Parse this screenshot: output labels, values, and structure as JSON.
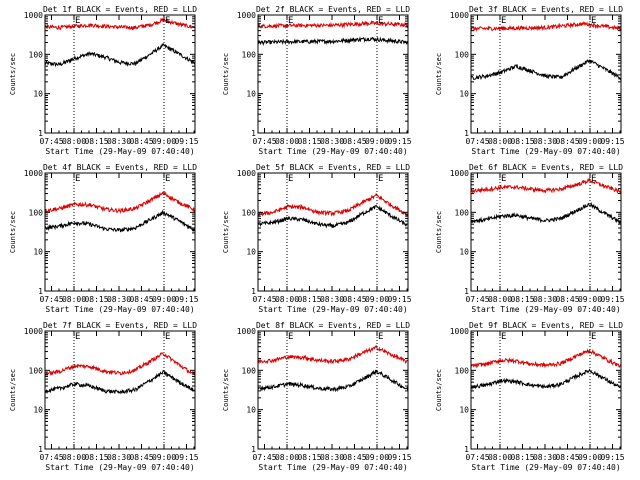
{
  "figure": {
    "background": "#ffffff",
    "axis_color": "#000000"
  },
  "chart_data": [
    {
      "type": "line",
      "title": "Det 1f BLACK = Events, RED = LLD",
      "xlabel": "Start Time (29-May-09 07:40:40)",
      "ylabel": "Counts/sec",
      "yscale": "log",
      "ylim": [
        1,
        1000
      ],
      "yticks": [
        1,
        10,
        100,
        1000
      ],
      "ytick_labels": [
        "1",
        "10",
        "100",
        "1000"
      ],
      "x_ticks": [
        "07:45",
        "08:00",
        "08:15",
        "08:30",
        "08:45",
        "09:00",
        "09:15"
      ],
      "x_tick_minutes": [
        4.33,
        19.33,
        34.33,
        49.33,
        64.33,
        79.33,
        94.33
      ],
      "xlim_minutes": [
        0,
        100
      ],
      "markers": [
        {
          "label": "E",
          "minute": 19.33
        },
        {
          "label": "E",
          "minute": 79.33
        }
      ],
      "series": [
        {
          "color": "#000000",
          "x": [
            0,
            10,
            20,
            30,
            40,
            50,
            60,
            70,
            79,
            88,
            100
          ],
          "y": [
            60,
            55,
            80,
            105,
            85,
            62,
            58,
            100,
            170,
            110,
            60
          ]
        },
        {
          "color": "#dd0000",
          "x": [
            0,
            10,
            20,
            30,
            40,
            50,
            60,
            70,
            79,
            88,
            100
          ],
          "y": [
            500,
            480,
            520,
            560,
            520,
            490,
            480,
            560,
            750,
            600,
            480
          ]
        }
      ]
    },
    {
      "type": "line",
      "title": "Det 2f BLACK = Events, RED = LLD",
      "xlabel": "Start Time (29-May-09 07:40:40)",
      "ylabel": "Counts/sec",
      "yscale": "log",
      "ylim": [
        1,
        1000
      ],
      "yticks": [
        1,
        10,
        100,
        1000
      ],
      "ytick_labels": [
        "1",
        "10",
        "100",
        "1000"
      ],
      "x_ticks": [
        "07:45",
        "08:00",
        "08:15",
        "08:30",
        "08:45",
        "09:00",
        "09:15"
      ],
      "x_tick_minutes": [
        4.33,
        19.33,
        34.33,
        49.33,
        64.33,
        79.33,
        94.33
      ],
      "xlim_minutes": [
        0,
        100
      ],
      "markers": [
        {
          "label": "E",
          "minute": 19.33
        },
        {
          "label": "E",
          "minute": 79.33
        }
      ],
      "series": [
        {
          "color": "#000000",
          "x": [
            0,
            25,
            50,
            75,
            100
          ],
          "y": [
            200,
            210,
            215,
            250,
            200
          ]
        },
        {
          "color": "#dd0000",
          "x": [
            0,
            25,
            50,
            75,
            100
          ],
          "y": [
            520,
            540,
            550,
            620,
            560
          ]
        }
      ]
    },
    {
      "type": "line",
      "title": "Det 3f BLACK = Events, RED = LLD",
      "xlabel": "Start Time (29-May-09 07:40:40)",
      "ylabel": "Counts/sec",
      "yscale": "log",
      "ylim": [
        1,
        1000
      ],
      "yticks": [
        1,
        10,
        100,
        1000
      ],
      "ytick_labels": [
        "1",
        "10",
        "100",
        "1000"
      ],
      "x_ticks": [
        "07:45",
        "08:00",
        "08:15",
        "08:30",
        "08:45",
        "09:00",
        "09:15"
      ],
      "x_tick_minutes": [
        4.33,
        19.33,
        34.33,
        49.33,
        64.33,
        79.33,
        94.33
      ],
      "xlim_minutes": [
        0,
        100
      ],
      "markers": [
        {
          "label": "E",
          "minute": 19.33
        },
        {
          "label": "E",
          "minute": 79.33
        }
      ],
      "series": [
        {
          "color": "#000000",
          "x": [
            0,
            10,
            20,
            30,
            40,
            50,
            60,
            70,
            79,
            88,
            100
          ],
          "y": [
            25,
            28,
            35,
            50,
            38,
            28,
            26,
            45,
            70,
            45,
            25
          ]
        },
        {
          "color": "#dd0000",
          "x": [
            0,
            25,
            50,
            75,
            100
          ],
          "y": [
            450,
            460,
            480,
            600,
            450
          ]
        }
      ]
    },
    {
      "type": "line",
      "title": "Det 4f BLACK = Events, RED = LLD",
      "xlabel": "Start Time (29-May-09 07:40:40)",
      "ylabel": "Counts/sec",
      "yscale": "log",
      "ylim": [
        1,
        1000
      ],
      "yticks": [
        1,
        10,
        100,
        1000
      ],
      "ytick_labels": [
        "1",
        "10",
        "100",
        "1000"
      ],
      "x_ticks": [
        "07:45",
        "08:00",
        "08:15",
        "08:30",
        "08:45",
        "09:00",
        "09:15"
      ],
      "x_tick_minutes": [
        4.33,
        19.33,
        34.33,
        49.33,
        64.33,
        79.33,
        94.33
      ],
      "xlim_minutes": [
        0,
        100
      ],
      "markers": [
        {
          "label": "E",
          "minute": 19.33
        },
        {
          "label": "E",
          "minute": 79.33
        }
      ],
      "series": [
        {
          "color": "#000000",
          "x": [
            0,
            10,
            20,
            30,
            40,
            50,
            60,
            70,
            79,
            88,
            100
          ],
          "y": [
            40,
            45,
            55,
            50,
            38,
            35,
            40,
            65,
            100,
            65,
            35
          ]
        },
        {
          "color": "#dd0000",
          "x": [
            0,
            10,
            20,
            30,
            40,
            50,
            60,
            70,
            79,
            88,
            100
          ],
          "y": [
            110,
            125,
            160,
            155,
            120,
            110,
            125,
            200,
            310,
            190,
            115
          ]
        }
      ]
    },
    {
      "type": "line",
      "title": "Det 5f BLACK = Events, RED = LLD",
      "xlabel": "Start Time (29-May-09 07:40:40)",
      "ylabel": "Counts/sec",
      "yscale": "log",
      "ylim": [
        1,
        1000
      ],
      "yticks": [
        1,
        10,
        100,
        1000
      ],
      "ytick_labels": [
        "1",
        "10",
        "100",
        "1000"
      ],
      "x_ticks": [
        "07:45",
        "08:00",
        "08:15",
        "08:30",
        "08:45",
        "09:00",
        "09:15"
      ],
      "x_tick_minutes": [
        4.33,
        19.33,
        34.33,
        49.33,
        64.33,
        79.33,
        94.33
      ],
      "xlim_minutes": [
        0,
        100
      ],
      "markers": [
        {
          "label": "E",
          "minute": 19.33
        },
        {
          "label": "E",
          "minute": 79.33
        }
      ],
      "series": [
        {
          "color": "#000000",
          "x": [
            0,
            10,
            20,
            30,
            40,
            50,
            60,
            70,
            79,
            88,
            100
          ],
          "y": [
            50,
            55,
            70,
            65,
            50,
            45,
            55,
            95,
            140,
            85,
            45
          ]
        },
        {
          "color": "#dd0000",
          "x": [
            0,
            10,
            20,
            30,
            40,
            50,
            60,
            70,
            79,
            88,
            100
          ],
          "y": [
            90,
            100,
            140,
            135,
            100,
            95,
            110,
            180,
            270,
            160,
            85
          ]
        }
      ]
    },
    {
      "type": "line",
      "title": "Det 6f BLACK = Events, RED = LLD",
      "xlabel": "Start Time (29-May-09 07:40:40)",
      "ylabel": "Counts/sec",
      "yscale": "log",
      "ylim": [
        1,
        1000
      ],
      "yticks": [
        1,
        10,
        100,
        1000
      ],
      "ytick_labels": [
        "1",
        "10",
        "100",
        "1000"
      ],
      "x_ticks": [
        "07:45",
        "08:00",
        "08:15",
        "08:30",
        "08:45",
        "09:00",
        "09:15"
      ],
      "x_tick_minutes": [
        4.33,
        19.33,
        34.33,
        49.33,
        64.33,
        79.33,
        94.33
      ],
      "xlim_minutes": [
        0,
        100
      ],
      "markers": [
        {
          "label": "E",
          "minute": 19.33
        },
        {
          "label": "E",
          "minute": 79.33
        }
      ],
      "series": [
        {
          "color": "#000000",
          "x": [
            0,
            10,
            20,
            30,
            40,
            50,
            60,
            70,
            79,
            88,
            100
          ],
          "y": [
            60,
            65,
            80,
            85,
            70,
            62,
            70,
            110,
            160,
            100,
            55
          ]
        },
        {
          "color": "#dd0000",
          "x": [
            0,
            10,
            20,
            30,
            40,
            50,
            60,
            70,
            79,
            88,
            100
          ],
          "y": [
            350,
            380,
            430,
            440,
            390,
            360,
            390,
            500,
            650,
            480,
            330
          ]
        }
      ]
    },
    {
      "type": "line",
      "title": "Det 7f BLACK = Events, RED = LLD",
      "xlabel": "Start Time (29-May-09 07:40:40)",
      "ylabel": "Counts/sec",
      "yscale": "log",
      "ylim": [
        1,
        1000
      ],
      "yticks": [
        1,
        10,
        100,
        1000
      ],
      "ytick_labels": [
        "1",
        "10",
        "100",
        "1000"
      ],
      "x_ticks": [
        "07:45",
        "08:00",
        "08:15",
        "08:30",
        "08:45",
        "09:00",
        "09:15"
      ],
      "x_tick_minutes": [
        4.33,
        19.33,
        34.33,
        49.33,
        64.33,
        79.33,
        94.33
      ],
      "xlim_minutes": [
        0,
        100
      ],
      "markers": [
        {
          "label": "E",
          "minute": 19.33
        },
        {
          "label": "E",
          "minute": 79.33
        }
      ],
      "series": [
        {
          "color": "#000000",
          "x": [
            0,
            10,
            20,
            30,
            40,
            50,
            60,
            70,
            79,
            88,
            100
          ],
          "y": [
            30,
            35,
            45,
            40,
            30,
            28,
            32,
            55,
            90,
            55,
            30
          ]
        },
        {
          "color": "#dd0000",
          "x": [
            0,
            10,
            20,
            30,
            40,
            50,
            60,
            70,
            79,
            88,
            100
          ],
          "y": [
            80,
            95,
            130,
            125,
            95,
            85,
            100,
            170,
            270,
            150,
            75
          ]
        }
      ]
    },
    {
      "type": "line",
      "title": "Det 8f BLACK = Events, RED = LLD",
      "xlabel": "Start Time (29-May-09 07:40:40)",
      "ylabel": "Counts/sec",
      "yscale": "log",
      "ylim": [
        1,
        1000
      ],
      "yticks": [
        1,
        10,
        100,
        1000
      ],
      "ytick_labels": [
        "1",
        "10",
        "100",
        "1000"
      ],
      "x_ticks": [
        "07:45",
        "08:00",
        "08:15",
        "08:30",
        "08:45",
        "09:00",
        "09:15"
      ],
      "x_tick_minutes": [
        4.33,
        19.33,
        34.33,
        49.33,
        64.33,
        79.33,
        94.33
      ],
      "xlim_minutes": [
        0,
        100
      ],
      "markers": [
        {
          "label": "E",
          "minute": 19.33
        },
        {
          "label": "E",
          "minute": 79.33
        }
      ],
      "series": [
        {
          "color": "#000000",
          "x": [
            0,
            10,
            20,
            30,
            40,
            50,
            60,
            70,
            79,
            88,
            100
          ],
          "y": [
            35,
            38,
            45,
            42,
            35,
            33,
            38,
            60,
            95,
            60,
            32
          ]
        },
        {
          "color": "#dd0000",
          "x": [
            0,
            10,
            20,
            30,
            40,
            50,
            60,
            70,
            79,
            88,
            100
          ],
          "y": [
            170,
            180,
            220,
            215,
            180,
            170,
            190,
            280,
            380,
            260,
            160
          ]
        }
      ]
    },
    {
      "type": "line",
      "title": "Det 9f BLACK = Events, RED = LLD",
      "xlabel": "Start Time (29-May-09 07:40:40)",
      "ylabel": "Counts/sec",
      "yscale": "log",
      "ylim": [
        1,
        1000
      ],
      "yticks": [
        1,
        10,
        100,
        1000
      ],
      "ytick_labels": [
        "1",
        "10",
        "100",
        "1000"
      ],
      "x_ticks": [
        "07:45",
        "08:00",
        "08:15",
        "08:30",
        "08:45",
        "09:00",
        "09:15"
      ],
      "x_tick_minutes": [
        4.33,
        19.33,
        34.33,
        49.33,
        64.33,
        79.33,
        94.33
      ],
      "xlim_minutes": [
        0,
        100
      ],
      "markers": [
        {
          "label": "E",
          "minute": 19.33
        },
        {
          "label": "E",
          "minute": 79.33
        }
      ],
      "series": [
        {
          "color": "#000000",
          "x": [
            0,
            10,
            20,
            30,
            40,
            50,
            60,
            70,
            79,
            88,
            100
          ],
          "y": [
            38,
            42,
            55,
            52,
            42,
            38,
            45,
            70,
            100,
            65,
            35
          ]
        },
        {
          "color": "#dd0000",
          "x": [
            0,
            10,
            20,
            30,
            40,
            50,
            60,
            70,
            79,
            88,
            100
          ],
          "y": [
            130,
            145,
            180,
            175,
            145,
            135,
            150,
            230,
            320,
            210,
            125
          ]
        }
      ]
    }
  ]
}
